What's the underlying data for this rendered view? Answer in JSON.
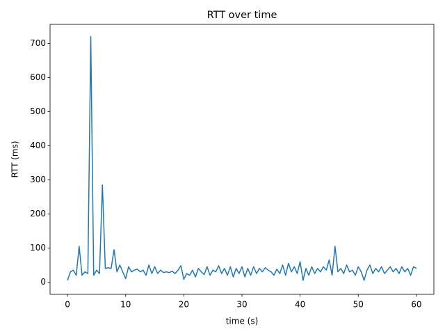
{
  "chart_data": {
    "type": "line",
    "title": "RTT over time",
    "x_label": "time (s)",
    "y_label": "RTT (ms)",
    "x": [
      0,
      0.5,
      1,
      1.5,
      2,
      2.5,
      3,
      3.5,
      4,
      4.5,
      5,
      5.5,
      6,
      6.5,
      7,
      7.5,
      8,
      8.5,
      9,
      9.5,
      10,
      10.5,
      11,
      11.5,
      12,
      12.5,
      13,
      13.5,
      14,
      14.5,
      15,
      15.5,
      16,
      16.5,
      17,
      17.5,
      18,
      18.5,
      19,
      19.5,
      20,
      20.5,
      21,
      21.5,
      22,
      22.5,
      23,
      23.5,
      24,
      24.5,
      25,
      25.5,
      26,
      26.5,
      27,
      27.5,
      28,
      28.5,
      29,
      29.5,
      30,
      30.5,
      31,
      31.5,
      32,
      32.5,
      33,
      33.5,
      34,
      34.5,
      35,
      35.5,
      36,
      36.5,
      37,
      37.5,
      38,
      38.5,
      39,
      39.5,
      40,
      40.5,
      41,
      41.5,
      42,
      42.5,
      43,
      43.5,
      44,
      44.5,
      45,
      45.5,
      46,
      46.5,
      47,
      47.5,
      48,
      48.5,
      49,
      49.5,
      50,
      50.5,
      51,
      51.5,
      52,
      52.5,
      53,
      53.5,
      54,
      54.5,
      55,
      55.5,
      56,
      56.5,
      57,
      57.5,
      58,
      58.5,
      59,
      59.5,
      60
    ],
    "series": [
      {
        "name": "RTT",
        "color": "#1f77b4",
        "values": [
          5,
          30,
          35,
          20,
          105,
          20,
          30,
          25,
          720,
          20,
          35,
          25,
          285,
          40,
          42,
          40,
          95,
          30,
          50,
          30,
          10,
          45,
          30,
          35,
          38,
          30,
          35,
          20,
          50,
          25,
          45,
          25,
          35,
          28,
          30,
          28,
          32,
          25,
          35,
          48,
          8,
          25,
          20,
          35,
          15,
          40,
          30,
          22,
          45,
          20,
          35,
          30,
          48,
          25,
          40,
          20,
          45,
          15,
          40,
          25,
          45,
          15,
          40,
          20,
          45,
          25,
          40,
          30,
          42,
          35,
          30,
          20,
          38,
          25,
          50,
          20,
          55,
          30,
          45,
          25,
          60,
          5,
          40,
          20,
          45,
          25,
          40,
          30,
          45,
          35,
          65,
          20,
          105,
          30,
          40,
          25,
          50,
          30,
          35,
          20,
          45,
          30,
          5,
          35,
          50,
          25,
          40,
          30,
          45,
          25,
          35,
          45,
          30,
          40,
          25,
          45,
          30,
          40,
          20,
          45,
          40
        ]
      }
    ],
    "xlim": [
      -3,
      63
    ],
    "ylim": [
      -36,
      756
    ],
    "xticks": [
      0,
      10,
      20,
      30,
      40,
      50,
      60
    ],
    "yticks": [
      0,
      100,
      200,
      300,
      400,
      500,
      600,
      700
    ]
  }
}
